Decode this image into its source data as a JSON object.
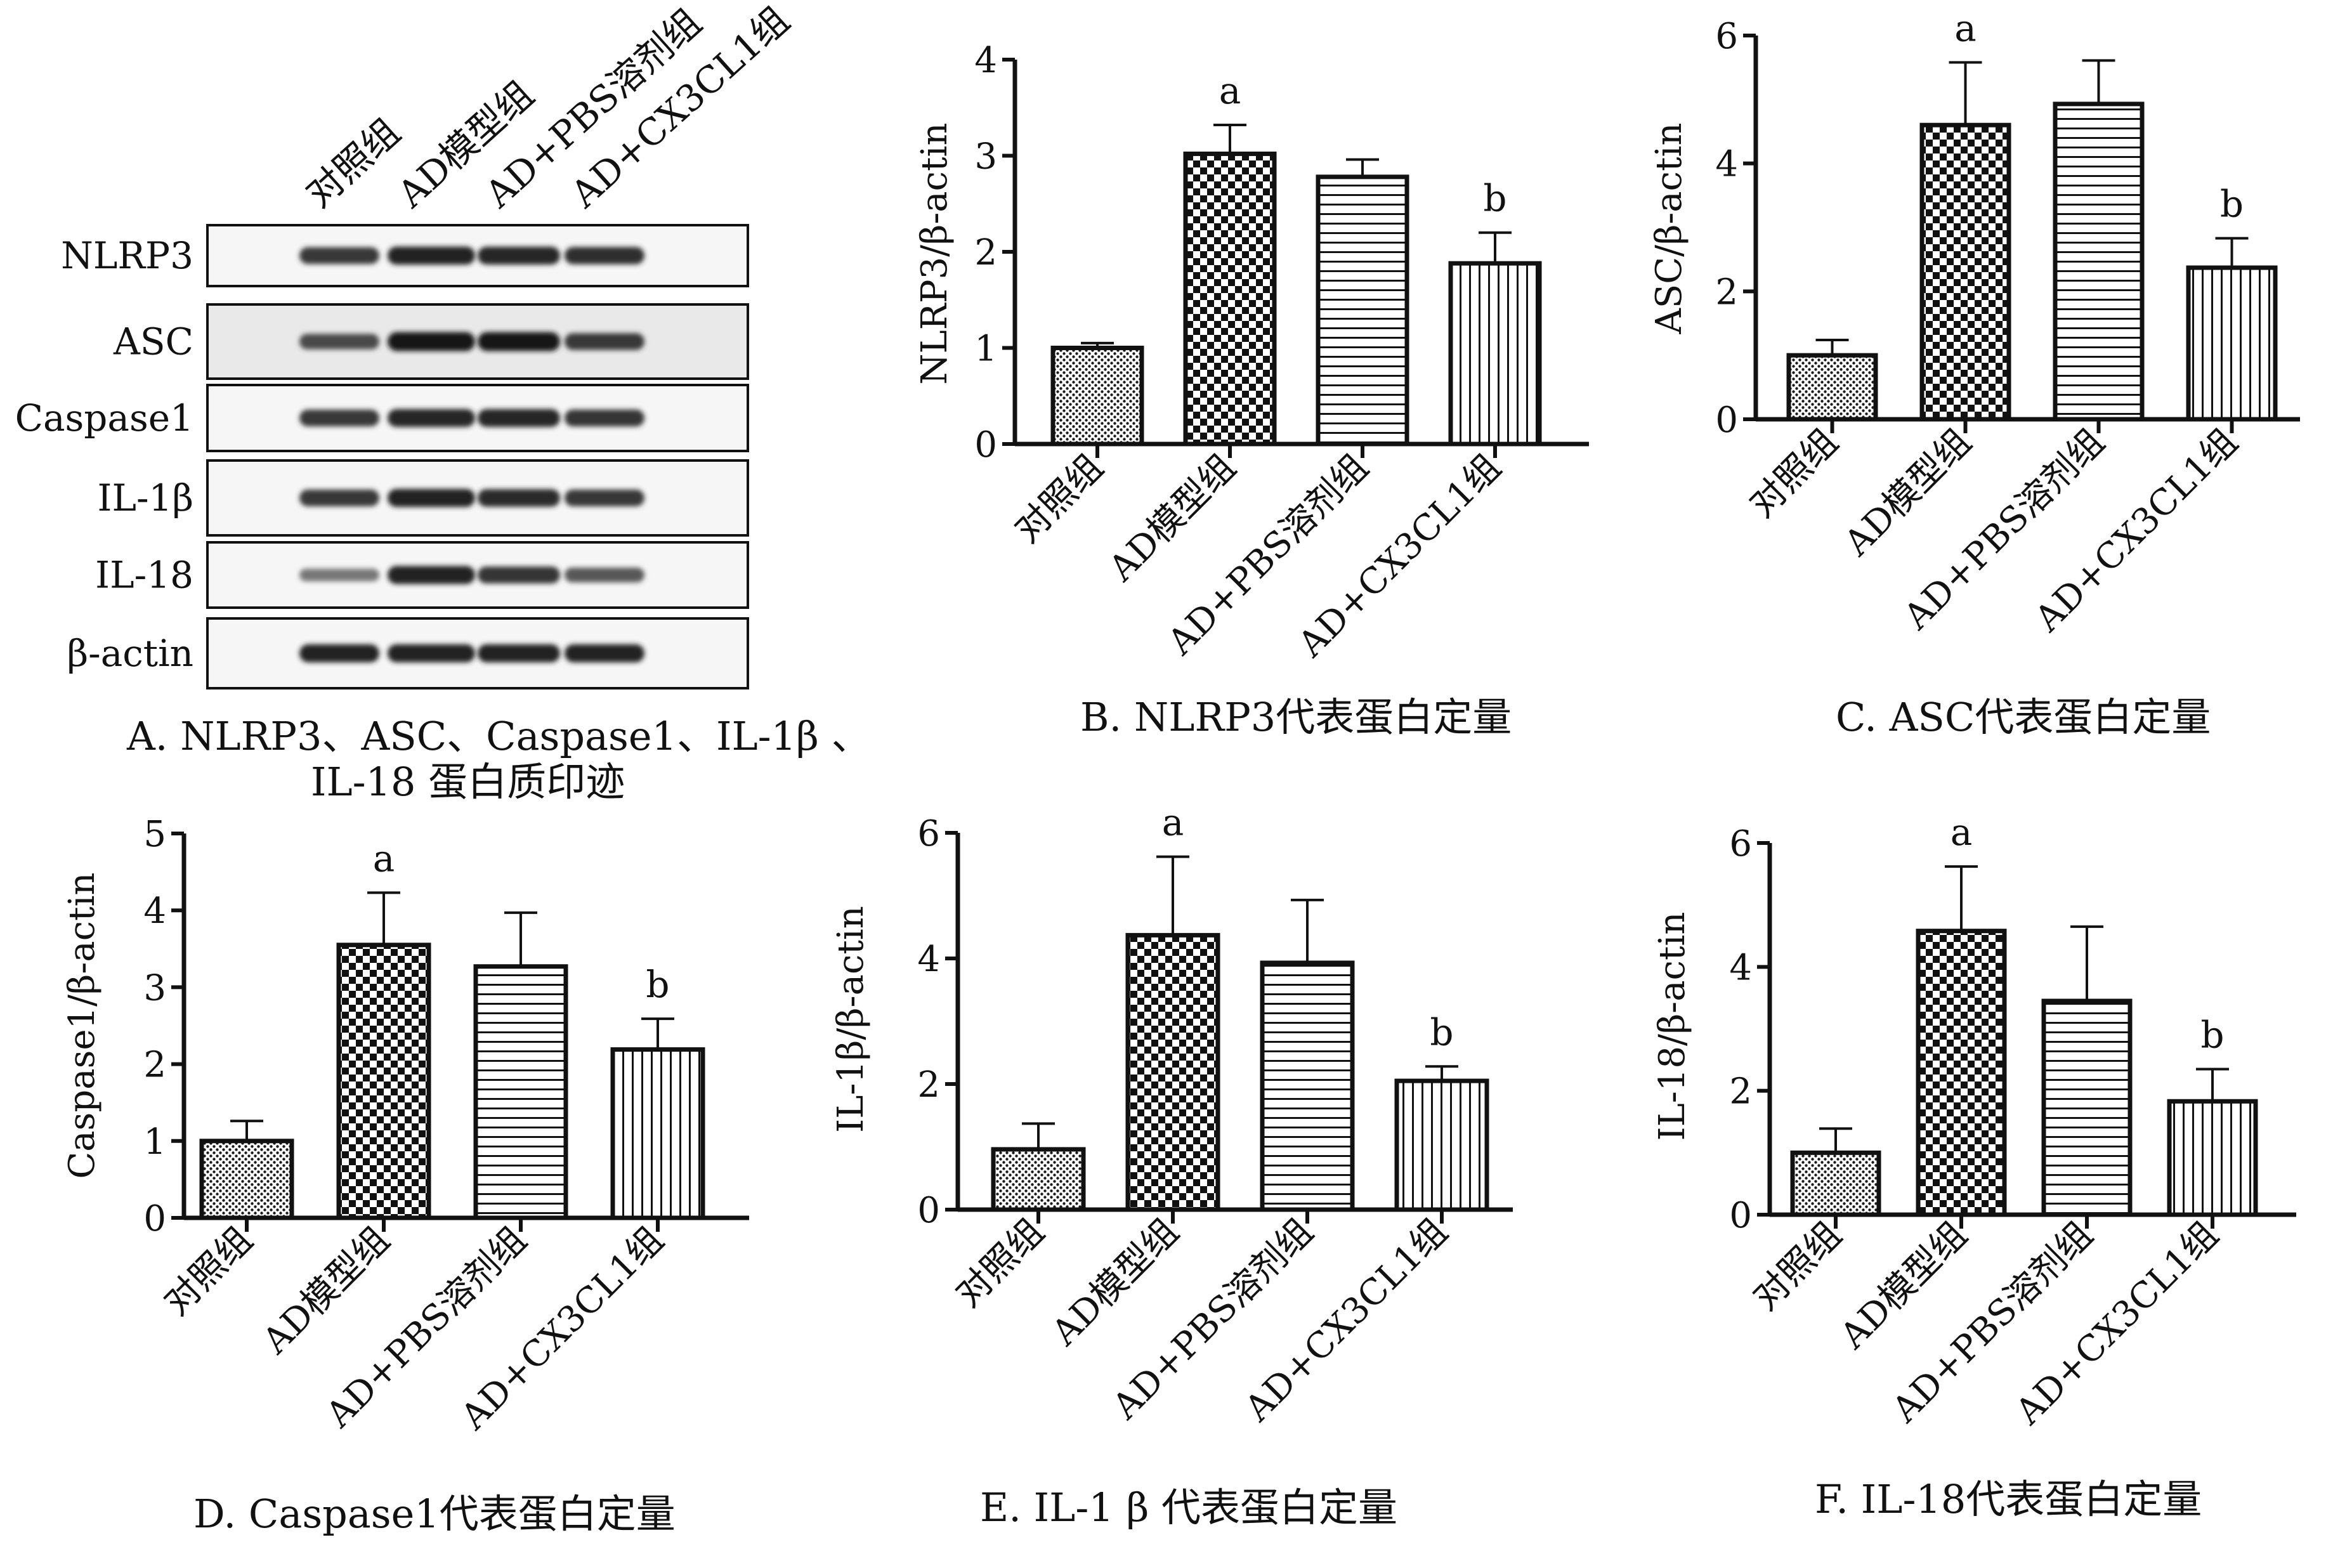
{
  "figure": {
    "blot": {
      "lanes": [
        "对照组",
        "AD模型组",
        "AD+PBS溶剂组",
        "AD+CX3CL1组"
      ],
      "rows": [
        {
          "label": "NLRP3",
          "intensity": [
            0.8,
            0.92,
            0.9,
            0.85
          ]
        },
        {
          "label": "ASC",
          "intensity": [
            0.7,
            1.0,
            1.0,
            0.8
          ]
        },
        {
          "label": "Caspase1",
          "intensity": [
            0.8,
            0.9,
            0.9,
            0.82
          ]
        },
        {
          "label": "IL-1β",
          "intensity": [
            0.8,
            0.92,
            0.88,
            0.8
          ]
        },
        {
          "label": "IL-18",
          "intensity": [
            0.45,
            0.92,
            0.82,
            0.62
          ]
        },
        {
          "label": "β-actin",
          "intensity": [
            0.92,
            0.92,
            0.92,
            0.92
          ]
        }
      ],
      "caption_line1": "A. NLRP3、ASC、Caspase1、IL-1β 、",
      "caption_line2": "IL-18 蛋白质印迹"
    },
    "captions": {
      "B": "B. NLRP3代表蛋白定量",
      "C": "C. ASC代表蛋白定量",
      "D": "D. Caspase1代表蛋白定量",
      "E": "E. IL-1 β 代表蛋白定量",
      "F": "F. IL-18代表蛋白定量"
    }
  },
  "chart_data": [
    {
      "id": "B",
      "type": "bar",
      "categories": [
        "对照组",
        "AD模型组",
        "AD+PBS溶剂组",
        "AD+CX3CL1组"
      ],
      "values": [
        1.0,
        3.02,
        2.78,
        1.88
      ],
      "errors": [
        0.05,
        0.3,
        0.18,
        0.32
      ],
      "annotations": [
        "",
        "a",
        "",
        "b"
      ],
      "ylabel": "NLRP3/β-actin",
      "ylim": [
        0,
        4
      ],
      "yticks": [
        0,
        1,
        2,
        3,
        4
      ],
      "title": "B. NLRP3代表蛋白定量"
    },
    {
      "id": "C",
      "type": "bar",
      "categories": [
        "对照组",
        "AD模型组",
        "AD+PBS溶剂组",
        "AD+CX3CL1组"
      ],
      "values": [
        1.0,
        4.6,
        4.93,
        2.37
      ],
      "errors": [
        0.24,
        0.98,
        0.68,
        0.46
      ],
      "annotations": [
        "",
        "a",
        "",
        "b"
      ],
      "ylabel": "ASC/β-actin",
      "ylim": [
        0,
        6
      ],
      "yticks": [
        0,
        2,
        4,
        6
      ],
      "title": "C. ASC代表蛋白定量"
    },
    {
      "id": "D",
      "type": "bar",
      "categories": [
        "对照组",
        "AD模型组",
        "AD+PBS溶剂组",
        "AD+CX3CL1组"
      ],
      "values": [
        1.0,
        3.55,
        3.27,
        2.19
      ],
      "errors": [
        0.26,
        0.68,
        0.7,
        0.4
      ],
      "annotations": [
        "",
        "a",
        "",
        "b"
      ],
      "ylabel": "Caspase1/β-actin",
      "ylim": [
        0,
        5
      ],
      "yticks": [
        0,
        1,
        2,
        3,
        4,
        5
      ],
      "title": "D. Caspase1代表蛋白定量"
    },
    {
      "id": "E",
      "type": "bar",
      "categories": [
        "对照组",
        "AD模型组",
        "AD+PBS溶剂组",
        "AD+CX3CL1组"
      ],
      "values": [
        0.96,
        4.37,
        3.93,
        2.05
      ],
      "errors": [
        0.41,
        1.25,
        1.0,
        0.23
      ],
      "annotations": [
        "",
        "a",
        "",
        "b"
      ],
      "ylabel": "IL-1β/β-actin",
      "ylim": [
        0,
        6
      ],
      "yticks": [
        0,
        2,
        4,
        6
      ],
      "title": "E. IL-1 β 代表蛋白定量"
    },
    {
      "id": "F",
      "type": "bar",
      "categories": [
        "对照组",
        "AD模型组",
        "AD+PBS溶剂组",
        "AD+CX3CL1组"
      ],
      "values": [
        1.0,
        4.58,
        3.45,
        1.83
      ],
      "errors": [
        0.39,
        1.04,
        1.2,
        0.52
      ],
      "annotations": [
        "",
        "a",
        "",
        "b"
      ],
      "ylabel": "IL-18/β-actin",
      "ylim": [
        0,
        6
      ],
      "yticks": [
        0,
        2,
        4,
        6
      ],
      "title": "F. IL-18代表蛋白定量"
    }
  ]
}
